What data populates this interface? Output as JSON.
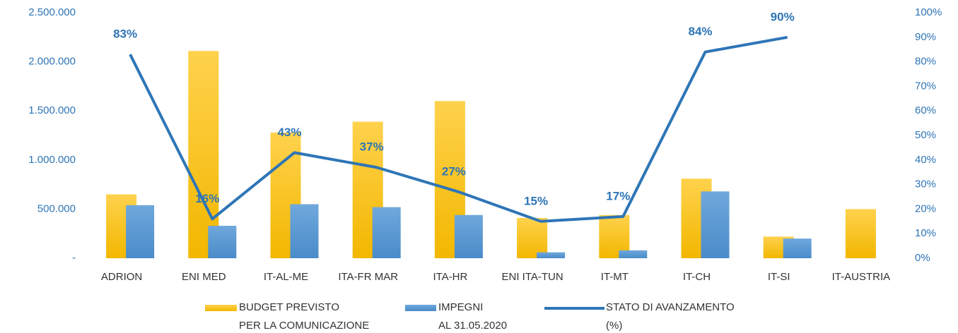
{
  "chart_data": {
    "type": "bar",
    "categories": [
      "ADRION",
      "ENI MED",
      "IT-AL-ME",
      "ITA-FR MAR",
      "ITA-HR",
      "ENI ITA-TUN",
      "IT-MT",
      "IT-CH",
      "IT-SI",
      "IT-AUSTRIA"
    ],
    "series": [
      {
        "name": "BUDGET PREVISTO\nPER LA COMUNICAZIONE",
        "type": "bar",
        "color": "#FFC000",
        "values": [
          650000,
          2110000,
          1280000,
          1390000,
          1600000,
          410000,
          440000,
          810000,
          220000,
          500000
        ]
      },
      {
        "name": "IMPEGNI\nAL 31.05.2020",
        "type": "bar",
        "color": "#5B9BD5",
        "values": [
          540000,
          330000,
          550000,
          520000,
          440000,
          60000,
          80000,
          680000,
          200000,
          null
        ]
      },
      {
        "name": "STATO DI AVANZAMENTO\n(%)",
        "type": "line",
        "axis": "y2",
        "color": "#2E75B6",
        "values": [
          83,
          16,
          43,
          37,
          27,
          15,
          17,
          84,
          90,
          null
        ],
        "value_labels": [
          "83%",
          "16%",
          "43%",
          "37%",
          "27%",
          "15%",
          "17%",
          "84%",
          "90%",
          null
        ]
      }
    ],
    "ylim": [
      0,
      2500000
    ],
    "yticks": [
      {
        "value": 0,
        "label": "-"
      },
      {
        "value": 500000,
        "label": "500.000"
      },
      {
        "value": 1000000,
        "label": "1.000.000"
      },
      {
        "value": 1500000,
        "label": "1.500.000"
      },
      {
        "value": 2000000,
        "label": "2.000.000"
      },
      {
        "value": 2500000,
        "label": "2.500.000"
      }
    ],
    "y2lim": [
      0,
      100
    ],
    "y2ticks": [
      {
        "value": 0,
        "label": "0%"
      },
      {
        "value": 10,
        "label": "10%"
      },
      {
        "value": 20,
        "label": "20%"
      },
      {
        "value": 30,
        "label": "30%"
      },
      {
        "value": 40,
        "label": "40%"
      },
      {
        "value": 50,
        "label": "50%"
      },
      {
        "value": 60,
        "label": "60%"
      },
      {
        "value": 70,
        "label": "70%"
      },
      {
        "value": 80,
        "label": "80%"
      },
      {
        "value": 90,
        "label": "90%"
      },
      {
        "value": 100,
        "label": "100%"
      }
    ],
    "grid": false,
    "legend": "bottom"
  }
}
